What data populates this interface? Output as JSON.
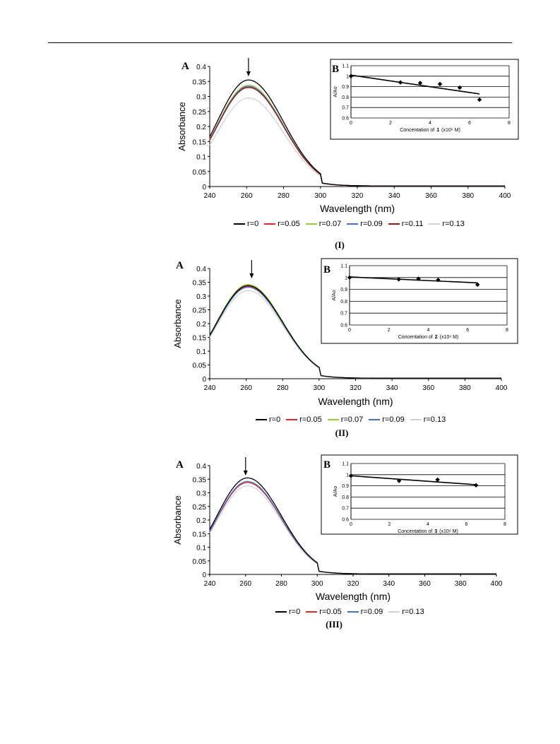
{
  "chart_data": [
    {
      "type": "line",
      "panel_label": "A",
      "caption": "(I)",
      "xlabel": "Wavelength (nm)",
      "ylabel": "Absorbance",
      "xlim": [
        240,
        400
      ],
      "ylim": [
        0,
        0.4
      ],
      "x_ticks": [
        "240",
        "260",
        "280",
        "300",
        "320",
        "340",
        "360",
        "380",
        "400"
      ],
      "y_ticks": [
        "0",
        "0.05",
        "0.1",
        "0.15",
        "0.2",
        "0.25",
        "0.3",
        "0.35",
        "0.4"
      ],
      "arrow_at_x": 261,
      "series": [
        {
          "name": "r=0",
          "color": "#000000",
          "peak": 0.355
        },
        {
          "name": "r=0.05",
          "color": "#e8232a",
          "peak": 0.333
        },
        {
          "name": "r=0.07",
          "color": "#9acd32",
          "peak": 0.338
        },
        {
          "name": "r=0.09",
          "color": "#4472c4",
          "peak": 0.334
        },
        {
          "name": "r=0.11",
          "color": "#8b1a1a",
          "peak": 0.33
        },
        {
          "name": "r=0.13",
          "color": "#d3d3d3",
          "peak": 0.295
        }
      ],
      "inset": {
        "type": "scatter",
        "panel_label": "B",
        "xlabel_prefix": "Concentation of",
        "compound": "1",
        "xlabel_suffix": "(x10⁶ M)",
        "ylabel": "A/Ao",
        "xlim": [
          0,
          8
        ],
        "ylim": [
          0.6,
          1.1
        ],
        "x_ticks": [
          "0",
          "2",
          "4",
          "6",
          "8"
        ],
        "y_ticks": [
          "0.6",
          "0.7",
          "0.8",
          "0.9",
          "1",
          "1.1"
        ],
        "points": [
          [
            0,
            1.0
          ],
          [
            2.5,
            0.94
          ],
          [
            3.5,
            0.935
          ],
          [
            4.5,
            0.925
          ],
          [
            5.5,
            0.89
          ],
          [
            6.5,
            0.775
          ]
        ],
        "trend": [
          [
            0,
            1.01
          ],
          [
            6.5,
            0.83
          ]
        ]
      }
    },
    {
      "type": "line",
      "panel_label": "A",
      "caption": "(II)",
      "xlabel": "Wavelength (nm)",
      "ylabel": "Absorbance",
      "xlim": [
        240,
        400
      ],
      "ylim": [
        0,
        0.4
      ],
      "x_ticks": [
        "240",
        "260",
        "280",
        "300",
        "320",
        "340",
        "360",
        "380",
        "400"
      ],
      "y_ticks": [
        "0",
        "0.05",
        "0.1",
        "0.15",
        "0.2",
        "0.25",
        "0.3",
        "0.35",
        "0.4"
      ],
      "arrow_at_x": 263,
      "series": [
        {
          "name": "r=0",
          "color": "#000000",
          "peak": 0.338
        },
        {
          "name": "r=0.05",
          "color": "#e8232a",
          "peak": 0.335
        },
        {
          "name": "r=0.07",
          "color": "#9acd32",
          "peak": 0.342
        },
        {
          "name": "r=0.09",
          "color": "#4472c4",
          "peak": 0.332
        },
        {
          "name": "r=0.13",
          "color": "#d3d3d3",
          "peak": 0.32
        }
      ],
      "inset": {
        "type": "scatter",
        "panel_label": "B",
        "xlabel_prefix": "Concentation of",
        "compound": "2",
        "xlabel_suffix": "(x10⁶ M)",
        "ylabel": "A/Ao",
        "xlim": [
          0,
          8
        ],
        "ylim": [
          0.6,
          1.1
        ],
        "x_ticks": [
          "0",
          "2",
          "4",
          "6",
          "8"
        ],
        "y_ticks": [
          "0.6",
          "0.7",
          "0.8",
          "0.9",
          "1",
          "1.1"
        ],
        "points": [
          [
            0,
            1.0
          ],
          [
            2.5,
            0.985
          ],
          [
            3.5,
            0.99
          ],
          [
            4.5,
            0.98
          ],
          [
            6.5,
            0.94
          ]
        ],
        "trend": [
          [
            0,
            1.005
          ],
          [
            6.5,
            0.955
          ]
        ]
      }
    },
    {
      "type": "line",
      "panel_label": "A",
      "caption": "(III)",
      "xlabel": "Wavelength (nm)",
      "ylabel": "Absorbance",
      "xlim": [
        240,
        400
      ],
      "ylim": [
        0,
        0.4
      ],
      "x_ticks": [
        "240",
        "260",
        "280",
        "300",
        "320",
        "340",
        "360",
        "380",
        "400"
      ],
      "y_ticks": [
        "0",
        "0.05",
        "0.1",
        "0.15",
        "0.2",
        "0.25",
        "0.3",
        "0.35",
        "0.4"
      ],
      "arrow_at_x": 260,
      "series": [
        {
          "name": "r=0",
          "color": "#000000",
          "peak": 0.355
        },
        {
          "name": "r=0.05",
          "color": "#e8232a",
          "peak": 0.338
        },
        {
          "name": "r=0.09",
          "color": "#4472c4",
          "peak": 0.342
        },
        {
          "name": "r=0.13",
          "color": "#d3d3d3",
          "peak": 0.325
        }
      ],
      "inset": {
        "type": "scatter",
        "panel_label": "B",
        "xlabel_prefix": "Concentation of",
        "compound": "3",
        "xlabel_suffix": "(x10⁶ M)",
        "ylabel": "A/Ao",
        "xlim": [
          0,
          8
        ],
        "ylim": [
          0.6,
          1.1
        ],
        "x_ticks": [
          "0",
          "2",
          "4",
          "6",
          "8"
        ],
        "y_ticks": [
          "0.6",
          "0.7",
          "0.8",
          "0.9",
          "1",
          "1.1"
        ],
        "points": [
          [
            0,
            0.99
          ],
          [
            2.5,
            0.945
          ],
          [
            4.5,
            0.955
          ],
          [
            6.5,
            0.905
          ]
        ],
        "trend": [
          [
            0,
            0.99
          ],
          [
            6.5,
            0.91
          ]
        ]
      }
    }
  ]
}
